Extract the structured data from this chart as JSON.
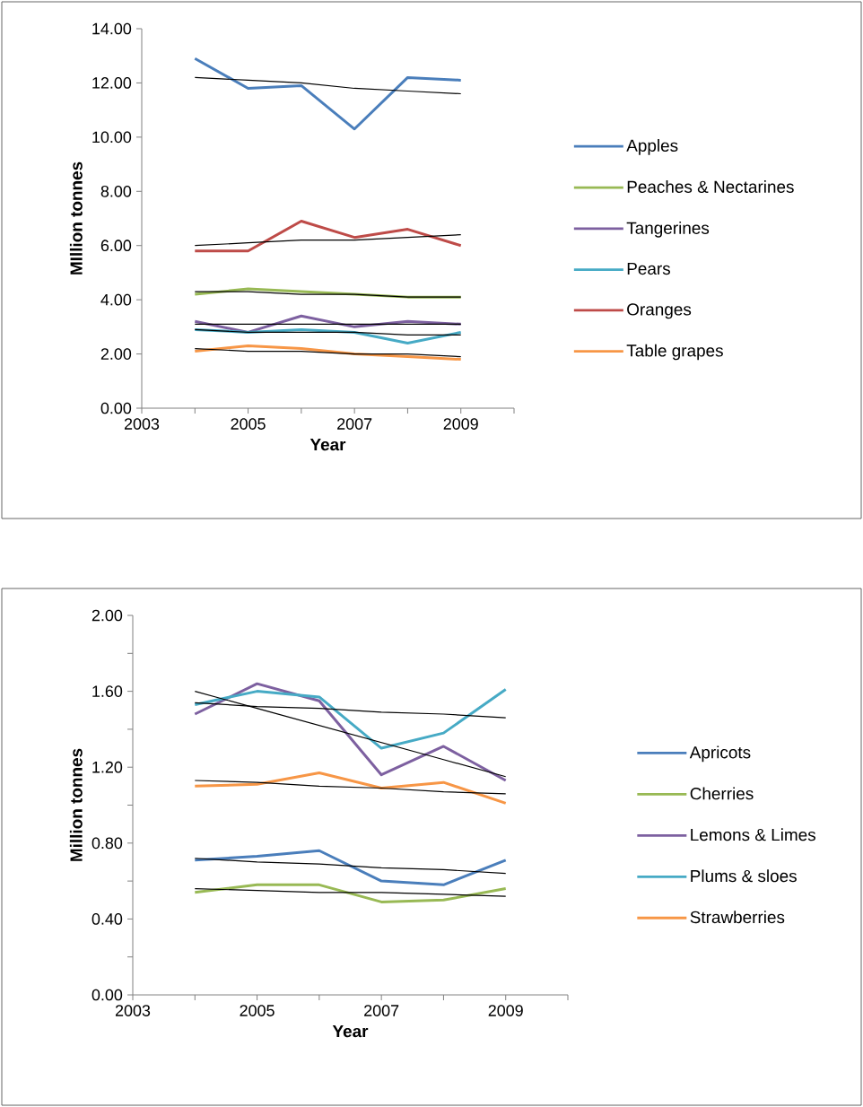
{
  "chart_data": [
    {
      "type": "line",
      "xlabel": "Year",
      "ylabel": "MIllion tonnes",
      "x": [
        2004,
        2005,
        2006,
        2007,
        2008,
        2009
      ],
      "xlim": [
        2003,
        2010
      ],
      "xticks": [
        2003,
        {
          "value": 2004,
          "label": null
        },
        2005,
        {
          "value": 2006,
          "label": null
        },
        2007,
        {
          "value": 2008,
          "label": null
        },
        2009,
        {
          "value": 2010,
          "label": null
        }
      ],
      "ylim": [
        0,
        14
      ],
      "yticks": [
        {
          "value": 0,
          "label": "0.00"
        },
        {
          "value": 2,
          "label": "2.00"
        },
        {
          "value": 4,
          "label": "4.00"
        },
        {
          "value": 6,
          "label": "6.00"
        },
        {
          "value": 8,
          "label": "8.00"
        },
        {
          "value": 10,
          "label": "10.00"
        },
        {
          "value": 12,
          "label": "12.00"
        },
        {
          "value": 14,
          "label": "14.00"
        }
      ],
      "legend": "right",
      "marker": "none",
      "line_style": "solid",
      "series": [
        {
          "name": "Apples",
          "color": "#4a7ebb",
          "values": [
            12.9,
            11.8,
            11.9,
            10.3,
            12.2,
            12.1
          ]
        },
        {
          "name": "Peaches & Nectarines",
          "color": "#98b954",
          "values": [
            4.2,
            4.4,
            4.3,
            4.2,
            4.1,
            4.1
          ]
        },
        {
          "name": "Tangerines",
          "color": "#7d60a0",
          "values": [
            3.2,
            2.8,
            3.4,
            3.0,
            3.2,
            3.1
          ]
        },
        {
          "name": "Pears",
          "color": "#46aac5",
          "values": [
            2.9,
            2.8,
            2.9,
            2.8,
            2.4,
            2.8
          ]
        },
        {
          "name": "Oranges",
          "color": "#be4b48",
          "values": [
            5.8,
            5.8,
            6.9,
            6.3,
            6.6,
            6.0
          ]
        },
        {
          "name": "Table grapes",
          "color": "#f79646",
          "values": [
            2.1,
            2.3,
            2.2,
            2.0,
            1.9,
            1.8
          ]
        },
        {
          "type": "line",
          "color": "#000000",
          "values": [
            12.2,
            12.1,
            12.0,
            11.8,
            11.7,
            11.6
          ]
        },
        {
          "type": "line",
          "color": "#000000",
          "values": [
            4.3,
            4.3,
            4.2,
            4.2,
            4.1,
            4.1
          ]
        },
        {
          "type": "line",
          "color": "#000000",
          "values": [
            3.1,
            3.1,
            3.1,
            3.1,
            3.1,
            3.1
          ]
        },
        {
          "type": "line",
          "color": "#000000",
          "values": [
            2.9,
            2.8,
            2.8,
            2.8,
            2.7,
            2.7
          ]
        },
        {
          "type": "line",
          "color": "#000000",
          "values": [
            6.0,
            6.1,
            6.2,
            6.2,
            6.3,
            6.4
          ]
        },
        {
          "type": "line",
          "color": "#000000",
          "values": [
            2.2,
            2.1,
            2.1,
            2.0,
            2.0,
            1.9
          ]
        }
      ]
    },
    {
      "type": "line",
      "xlabel": "Year",
      "ylabel": "Million tonnes",
      "x": [
        2004,
        2005,
        2006,
        2007,
        2008,
        2009
      ],
      "xlim": [
        2003,
        2010
      ],
      "xticks": [
        2003,
        {
          "value": 2004,
          "label": null
        },
        2005,
        {
          "value": 2006,
          "label": null
        },
        2007,
        {
          "value": 2008,
          "label": null
        },
        2009,
        {
          "value": 2010,
          "label": null
        }
      ],
      "ylim": [
        0,
        2
      ],
      "yticks": [
        {
          "value": 0,
          "label": "0.00"
        },
        {
          "value": 0.2,
          "label": null
        },
        {
          "value": 0.4,
          "label": "0.40"
        },
        {
          "value": 0.6,
          "label": null
        },
        {
          "value": 0.8,
          "label": "0.80"
        },
        {
          "value": 1.0,
          "label": null
        },
        {
          "value": 1.2,
          "label": "1.20"
        },
        {
          "value": 1.4,
          "label": null
        },
        {
          "value": 1.6,
          "label": "1.60"
        },
        {
          "value": 1.8,
          "label": null
        },
        {
          "value": 2,
          "label": "2.00"
        }
      ],
      "legend": "right",
      "marker": "none",
      "line_style": "solid",
      "series": [
        {
          "name": "Apricots",
          "color": "#4a7ebb",
          "values": [
            0.71,
            0.73,
            0.76,
            0.6,
            0.58,
            0.71
          ]
        },
        {
          "name": "Cherries",
          "color": "#98b954",
          "values": [
            0.54,
            0.58,
            0.58,
            0.49,
            0.5,
            0.56
          ]
        },
        {
          "name": "Lemons & Limes",
          "color": "#7d60a0",
          "values": [
            1.48,
            1.64,
            1.55,
            1.16,
            1.31,
            1.13
          ]
        },
        {
          "name": "Plums & sloes",
          "color": "#46aac5",
          "values": [
            1.53,
            1.6,
            1.57,
            1.3,
            1.38,
            1.61
          ]
        },
        {
          "name": "Strawberries",
          "color": "#f79646",
          "values": [
            1.1,
            1.11,
            1.17,
            1.09,
            1.12,
            1.01
          ]
        },
        {
          "type": "line",
          "color": "#000000",
          "values": [
            0.72,
            0.7,
            0.69,
            0.67,
            0.66,
            0.64
          ]
        },
        {
          "type": "line",
          "color": "#000000",
          "values": [
            0.56,
            0.55,
            0.54,
            0.54,
            0.53,
            0.52
          ]
        },
        {
          "type": "line",
          "color": "#000000",
          "values": [
            1.6,
            1.51,
            1.42,
            1.33,
            1.24,
            1.15
          ]
        },
        {
          "type": "line",
          "color": "#000000",
          "values": [
            1.54,
            1.52,
            1.51,
            1.49,
            1.48,
            1.46
          ]
        },
        {
          "type": "line",
          "color": "#000000",
          "values": [
            1.13,
            1.12,
            1.1,
            1.09,
            1.07,
            1.06
          ]
        }
      ]
    }
  ]
}
